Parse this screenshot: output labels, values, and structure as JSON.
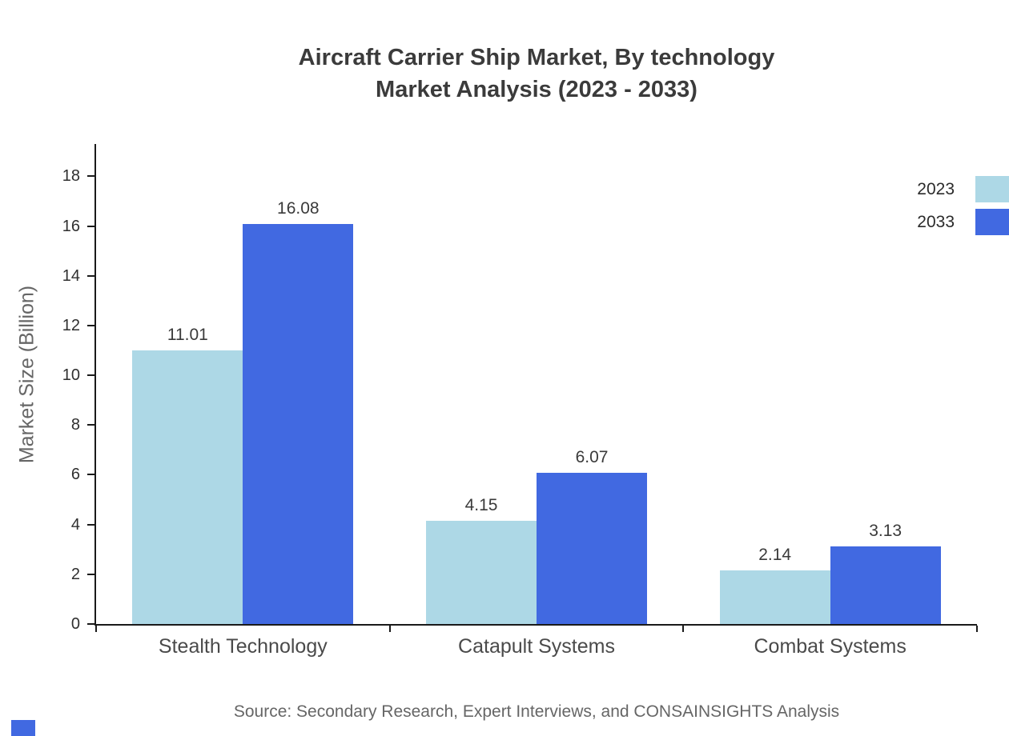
{
  "title": {
    "line1": "Aircraft Carrier Ship Market, By technology",
    "line2": "Market Analysis (2023 - 2033)"
  },
  "source": "Source: Secondary Research, Expert Interviews, and CONSAINSIGHTS Analysis",
  "colors": {
    "series_2023": "#ADD8E6",
    "series_2033": "#4169E1",
    "axis": "#1a1a1a",
    "brand": "#4169E1"
  },
  "chart_data": {
    "type": "bar",
    "title": "Aircraft Carrier Ship Market, By technology Market Analysis (2023 - 2033)",
    "categories": [
      "Stealth Technology",
      "Catapult Systems",
      "Combat Systems"
    ],
    "series": [
      {
        "name": "2023",
        "color": "#ADD8E6",
        "values": [
          11.01,
          4.15,
          2.14
        ]
      },
      {
        "name": "2033",
        "color": "#4169E1",
        "values": [
          16.08,
          6.07,
          3.13
        ]
      }
    ],
    "xlabel": "",
    "ylabel": "Market Size (Billion)",
    "ylim": [
      0,
      19.3
    ],
    "yticks": [
      0,
      2,
      4,
      6,
      8,
      10,
      12,
      14,
      16,
      18
    ],
    "grid": false,
    "legend_position": "top-right",
    "value_labels": true
  }
}
